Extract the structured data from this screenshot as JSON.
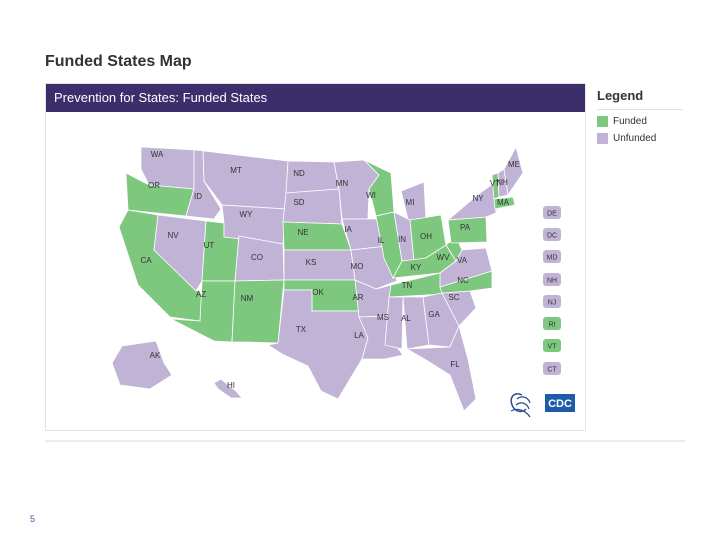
{
  "page_title": "Funded States Map",
  "map_title": "Prevention for States: Funded States",
  "legend": {
    "title": "Legend",
    "items": [
      {
        "label": "Funded",
        "color": "#7dc77f"
      },
      {
        "label": "Unfunded",
        "color": "#c0b3d6"
      }
    ]
  },
  "colors": {
    "funded": "#7dc77f",
    "unfunded": "#c0b3d6",
    "header": "#3b2e6b",
    "border": "#ffffff"
  },
  "states": [
    {
      "abbr": "WA",
      "funded": false
    },
    {
      "abbr": "OR",
      "funded": true
    },
    {
      "abbr": "CA",
      "funded": true
    },
    {
      "abbr": "ID",
      "funded": false
    },
    {
      "abbr": "NV",
      "funded": false
    },
    {
      "abbr": "UT",
      "funded": true
    },
    {
      "abbr": "AZ",
      "funded": true
    },
    {
      "abbr": "MT",
      "funded": false
    },
    {
      "abbr": "WY",
      "funded": false
    },
    {
      "abbr": "CO",
      "funded": false
    },
    {
      "abbr": "NM",
      "funded": true
    },
    {
      "abbr": "ND",
      "funded": false
    },
    {
      "abbr": "SD",
      "funded": false
    },
    {
      "abbr": "NE",
      "funded": true
    },
    {
      "abbr": "KS",
      "funded": false
    },
    {
      "abbr": "OK",
      "funded": true
    },
    {
      "abbr": "TX",
      "funded": false
    },
    {
      "abbr": "MN",
      "funded": false
    },
    {
      "abbr": "IA",
      "funded": false
    },
    {
      "abbr": "MO",
      "funded": false
    },
    {
      "abbr": "AR",
      "funded": false
    },
    {
      "abbr": "LA",
      "funded": false
    },
    {
      "abbr": "WI",
      "funded": true
    },
    {
      "abbr": "IL",
      "funded": true
    },
    {
      "abbr": "MI",
      "funded": false
    },
    {
      "abbr": "IN",
      "funded": false
    },
    {
      "abbr": "OH",
      "funded": true
    },
    {
      "abbr": "KY",
      "funded": true
    },
    {
      "abbr": "TN",
      "funded": true
    },
    {
      "abbr": "MS",
      "funded": false
    },
    {
      "abbr": "AL",
      "funded": false
    },
    {
      "abbr": "GA",
      "funded": false
    },
    {
      "abbr": "FL",
      "funded": false
    },
    {
      "abbr": "SC",
      "funded": false
    },
    {
      "abbr": "NC",
      "funded": true
    },
    {
      "abbr": "VA",
      "funded": false
    },
    {
      "abbr": "WV",
      "funded": true
    },
    {
      "abbr": "PA",
      "funded": true
    },
    {
      "abbr": "NY",
      "funded": false
    },
    {
      "abbr": "VT",
      "funded": true
    },
    {
      "abbr": "NH",
      "funded": false
    },
    {
      "abbr": "ME",
      "funded": false
    },
    {
      "abbr": "MA",
      "funded": true
    },
    {
      "abbr": "AK",
      "funded": false
    },
    {
      "abbr": "HI",
      "funded": false
    }
  ],
  "small_states": [
    {
      "abbr": "DE",
      "funded": false
    },
    {
      "abbr": "DC",
      "funded": false
    },
    {
      "abbr": "MD",
      "funded": false
    },
    {
      "abbr": "NH",
      "funded": false
    },
    {
      "abbr": "NJ",
      "funded": false
    },
    {
      "abbr": "RI",
      "funded": true
    },
    {
      "abbr": "VT",
      "funded": true
    },
    {
      "abbr": "CT",
      "funded": false
    }
  ],
  "logos": {
    "hhs": "hhs-eagle-icon",
    "cdc_text": "CDC"
  },
  "page_number": "5"
}
